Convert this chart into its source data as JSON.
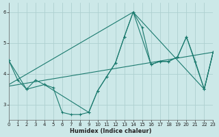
{
  "xlabel": "Humidex (Indice chaleur)",
  "bg_color": "#cce8e8",
  "line_color": "#1a7a6e",
  "grid_color": "#aed0d0",
  "xlim": [
    0,
    23
  ],
  "ylim": [
    2.5,
    6.3
  ],
  "yticks": [
    3,
    4,
    5,
    6
  ],
  "xticks": [
    0,
    1,
    2,
    3,
    4,
    5,
    6,
    7,
    8,
    9,
    10,
    11,
    12,
    13,
    14,
    15,
    16,
    17,
    18,
    19,
    20,
    21,
    22,
    23
  ],
  "series_main": {
    "x": [
      0,
      1,
      2,
      3,
      4,
      5,
      6,
      7,
      8,
      9,
      10,
      11,
      12,
      13,
      14,
      15,
      16,
      17,
      18,
      19,
      20,
      21,
      22,
      23
    ],
    "y": [
      4.43,
      3.8,
      3.5,
      3.8,
      3.65,
      3.55,
      2.75,
      2.68,
      2.68,
      2.75,
      3.45,
      3.9,
      4.35,
      5.2,
      6.0,
      5.5,
      4.3,
      4.4,
      4.4,
      4.55,
      5.2,
      4.4,
      3.5,
      4.7
    ]
  },
  "series_smooth": {
    "x": [
      0,
      2,
      4,
      9,
      10,
      11,
      12,
      13,
      14,
      16,
      17,
      18,
      19,
      20,
      22,
      23
    ],
    "y": [
      4.43,
      3.5,
      3.65,
      2.75,
      3.45,
      3.9,
      4.35,
      5.2,
      6.0,
      4.3,
      4.4,
      4.4,
      4.55,
      5.2,
      3.5,
      4.7
    ]
  },
  "series_diagonal1": {
    "x": [
      0,
      14,
      22,
      23
    ],
    "y": [
      3.65,
      6.0,
      3.5,
      4.7
    ]
  },
  "series_diagonal2": {
    "x": [
      0,
      23
    ],
    "y": [
      3.6,
      4.7
    ]
  }
}
